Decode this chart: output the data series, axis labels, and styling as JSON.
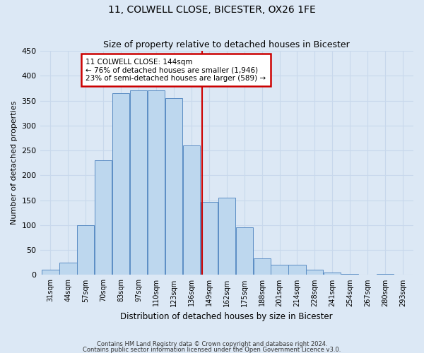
{
  "title": "11, COLWELL CLOSE, BICESTER, OX26 1FE",
  "subtitle": "Size of property relative to detached houses in Bicester",
  "xlabel": "Distribution of detached houses by size in Bicester",
  "ylabel": "Number of detached properties",
  "bar_labels": [
    "31sqm",
    "44sqm",
    "57sqm",
    "70sqm",
    "83sqm",
    "97sqm",
    "110sqm",
    "123sqm",
    "136sqm",
    "149sqm",
    "162sqm",
    "175sqm",
    "188sqm",
    "201sqm",
    "214sqm",
    "228sqm",
    "241sqm",
    "254sqm",
    "267sqm",
    "280sqm",
    "293sqm"
  ],
  "bar_values": [
    10,
    25,
    100,
    230,
    365,
    370,
    370,
    355,
    260,
    147,
    155,
    95,
    33,
    20,
    20,
    10,
    5,
    2,
    1,
    2,
    1
  ],
  "bar_color": "#bdd7ee",
  "bar_edge_color": "#5b8dc4",
  "grid_color": "#c8d8ec",
  "background_color": "#dce8f5",
  "marker_line_color": "#cc0000",
  "annotation_title": "11 COLWELL CLOSE: 144sqm",
  "annotation_line1": "← 76% of detached houses are smaller (1,946)",
  "annotation_line2": "23% of semi-detached houses are larger (589) →",
  "annotation_box_color": "#ffffff",
  "annotation_box_edge": "#cc0000",
  "ylim": [
    0,
    450
  ],
  "yticks": [
    0,
    50,
    100,
    150,
    200,
    250,
    300,
    350,
    400,
    450
  ],
  "footnote1": "Contains HM Land Registry data © Crown copyright and database right 2024.",
  "footnote2": "Contains public sector information licensed under the Open Government Licence v3.0."
}
